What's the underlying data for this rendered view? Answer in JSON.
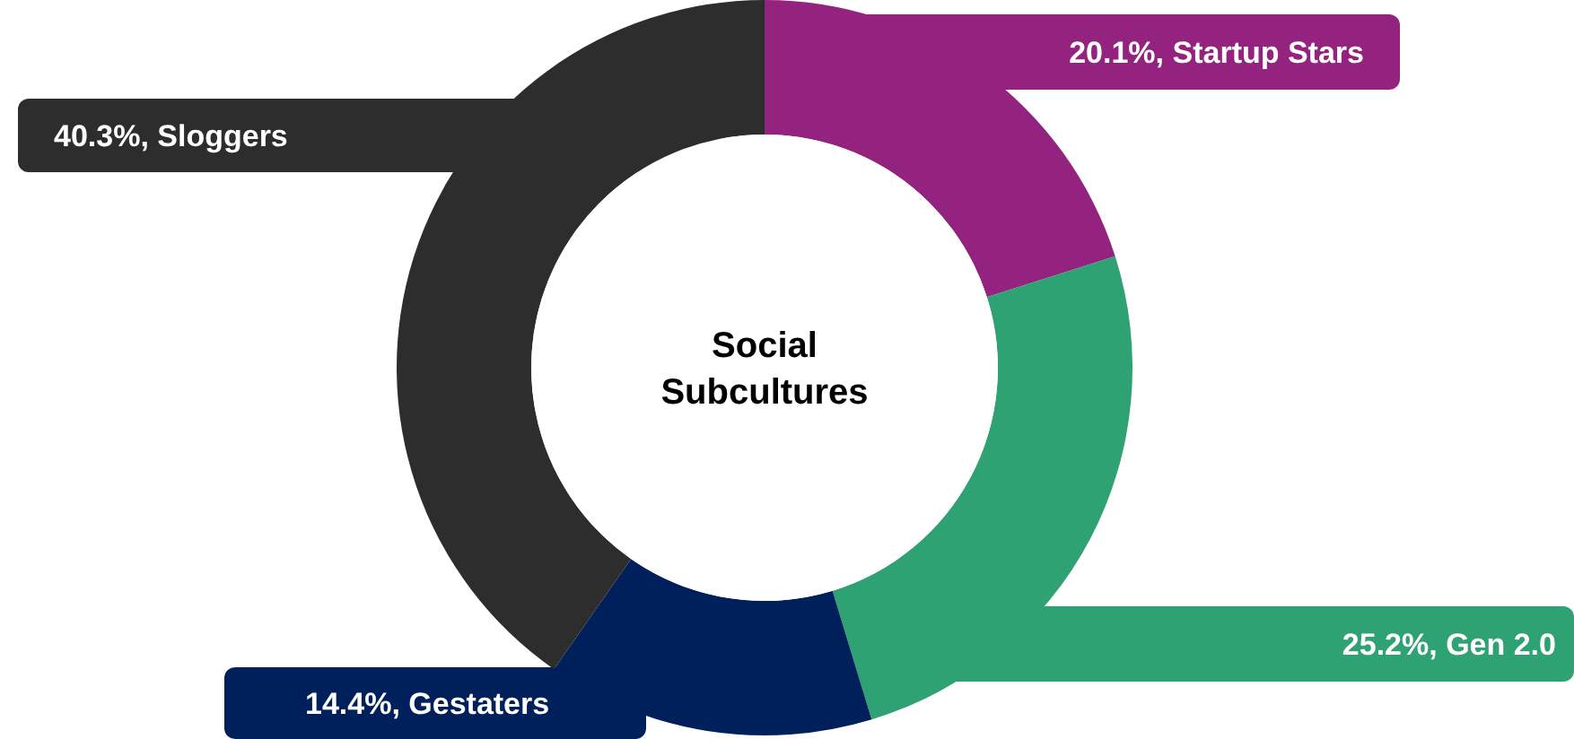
{
  "chart_data": {
    "type": "donut",
    "title": "Social Subcultures",
    "categories": [
      "Startup Stars",
      "Gen 2.0",
      "Gestaters",
      "Sloggers"
    ],
    "values": [
      20.1,
      25.2,
      14.4,
      40.3
    ],
    "value_labels": [
      "20.1%",
      "25.2%",
      "14.4%",
      "40.3%"
    ],
    "colors": [
      "#93237f",
      "#2fa273",
      "#00205c",
      "#2d2d2d"
    ]
  }
}
